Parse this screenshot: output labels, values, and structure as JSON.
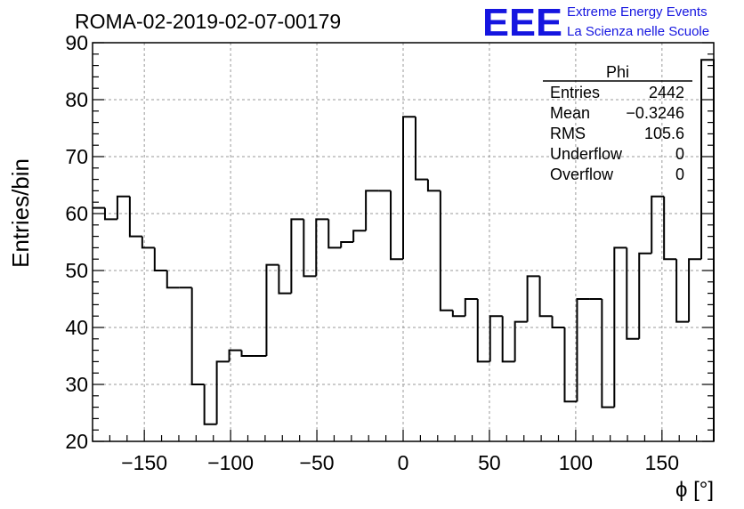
{
  "chart_data": {
    "type": "histogram",
    "title": "ROMA-02-2019-02-07-00179",
    "xlabel": "ϕ [°]",
    "ylabel": "Entries/bin",
    "xlim": [
      -180,
      180
    ],
    "ylim": [
      20,
      90
    ],
    "grid": true,
    "bin_width": 7.2,
    "values": [
      61,
      59,
      63,
      56,
      54,
      50,
      47,
      47,
      30,
      23,
      34,
      36,
      35,
      35,
      51,
      46,
      59,
      49,
      59,
      54,
      55,
      57,
      64,
      64,
      52,
      77,
      66,
      64,
      43,
      42,
      45,
      34,
      42,
      34,
      41,
      49,
      42,
      40,
      27,
      45,
      45,
      26,
      54,
      38,
      53,
      63,
      52,
      41,
      52,
      87
    ],
    "x_ticks": [
      "−150",
      "−100",
      "−50",
      "0",
      "50",
      "100",
      "150"
    ],
    "x_tick_values": [
      -150,
      -100,
      -50,
      0,
      50,
      100,
      150
    ],
    "y_ticks": [
      "20",
      "30",
      "40",
      "50",
      "60",
      "70",
      "80",
      "90"
    ],
    "y_tick_values": [
      20,
      30,
      40,
      50,
      60,
      70,
      80,
      90
    ],
    "stats_box": {
      "title": "Phi",
      "rows": [
        {
          "label": "Entries",
          "value": "2442"
        },
        {
          "label": "Mean",
          "value": "−0.3246"
        },
        {
          "label": "RMS",
          "value": "105.6"
        },
        {
          "label": "Underflow",
          "value": "0"
        },
        {
          "label": "Overflow",
          "value": "0"
        }
      ]
    }
  },
  "logo": {
    "mark": "EEE",
    "line1": "Extreme Energy Events",
    "line2": "La Scienza nelle Scuole",
    "color": "#1515e0"
  }
}
